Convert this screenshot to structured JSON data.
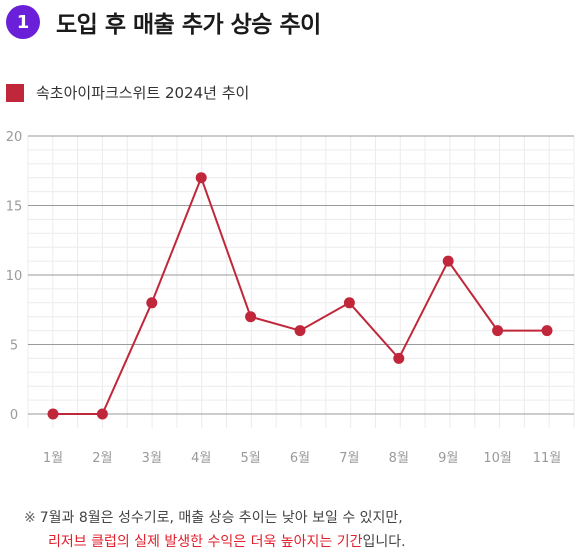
{
  "header": {
    "number": "1",
    "title": "도입 후 매출 추가 상승 추이"
  },
  "legend": {
    "label": "속초아이파크스위트 2024년 추이",
    "color": "#c1273a"
  },
  "chart_data": {
    "type": "line",
    "title": "",
    "xlabel": "",
    "ylabel": "",
    "categories": [
      "1월",
      "2월",
      "3월",
      "4월",
      "5월",
      "6월",
      "7월",
      "8월",
      "9월",
      "10월",
      "11월"
    ],
    "series": [
      {
        "name": "속초아이파크스위트 2024년 추이",
        "values": [
          0,
          0,
          8,
          17,
          7,
          6,
          8,
          4,
          11,
          6,
          6
        ]
      }
    ],
    "ylim": [
      0,
      20
    ],
    "yticks": [
      0,
      5,
      10,
      15,
      20
    ],
    "grid": true,
    "legend_position": "top-left",
    "line_color": "#c1273a"
  },
  "note": {
    "mark": "※",
    "line1": "7월과 8월은 성수기로, 매출 상승 추이는 낮아 보일 수 있지만,",
    "line2_highlight": "리저브 클럽의 실제 발생한 수익은 더욱 높아지는 기간",
    "line2_rest": "입니다."
  }
}
